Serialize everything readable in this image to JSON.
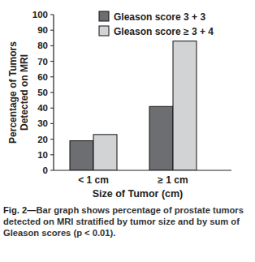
{
  "chart_data": {
    "type": "bar",
    "ylabel": [
      "Percentage of Tumors",
      "Detected on MRI"
    ],
    "xlabel": "Size of Tumor (cm)",
    "caption_label": "Fig. 2—",
    "caption": "Bar graph shows percentage of prostate tumors detected on MRI stratified by tumor size and by sum of Gleason scores (p < 0.01).",
    "categories": [
      "< 1 cm",
      "≥ 1 cm"
    ],
    "series": [
      {
        "name": "Gleason score 3 + 3",
        "color": "#6d6e71",
        "values": [
          19,
          41
        ]
      },
      {
        "name": "Gleason score ≥ 3 + 4",
        "color": "#d1d3d4",
        "values": [
          23,
          83
        ]
      }
    ],
    "ylim": [
      0,
      100
    ],
    "yticks": [
      0,
      10,
      20,
      30,
      40,
      50,
      60,
      70,
      80,
      90,
      100
    ],
    "grid": false,
    "legend": "top-left"
  }
}
